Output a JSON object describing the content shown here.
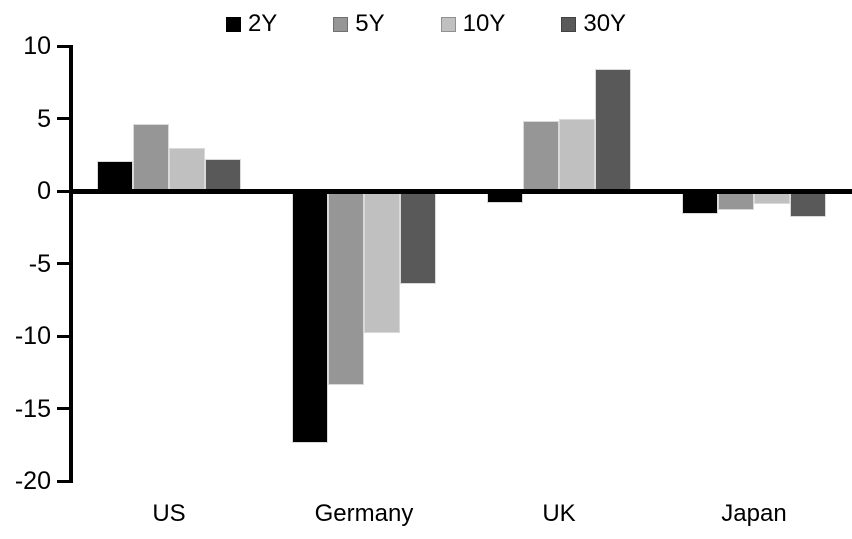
{
  "chart_data": {
    "type": "bar",
    "title": "",
    "categories": [
      "US",
      "Germany",
      "UK",
      "Japan"
    ],
    "series": [
      {
        "name": "2Y",
        "color": "#000000",
        "values": [
          2.1,
          -17.4,
          -0.8,
          -1.6
        ]
      },
      {
        "name": "5Y",
        "color": "#969696",
        "values": [
          4.6,
          -13.4,
          4.8,
          -1.3
        ]
      },
      {
        "name": "10Y",
        "color": "#c0c0c0",
        "values": [
          3.0,
          -9.8,
          5.0,
          -0.9
        ]
      },
      {
        "name": "30Y",
        "color": "#595959",
        "values": [
          2.2,
          -6.4,
          8.4,
          -1.8
        ]
      }
    ],
    "xlabel": "",
    "ylabel": "",
    "ylim": [
      -20,
      10
    ],
    "yticks": [
      10,
      5,
      0,
      -5,
      -10,
      -15,
      -20
    ],
    "grid": false,
    "legend_position": "top",
    "axis_color": "#000000",
    "background_color": "#ffffff"
  }
}
